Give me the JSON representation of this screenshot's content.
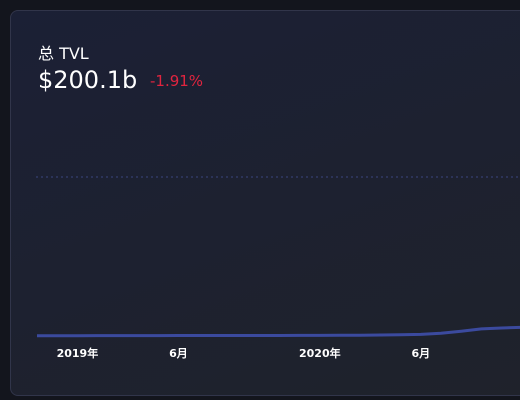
{
  "chart_data": {
    "type": "line",
    "title": "总 TVL",
    "value_text": "$200.1b",
    "change_text": "-1.91%",
    "categories": [
      null,
      null,
      "2019年",
      null,
      null,
      null,
      null,
      "6月",
      null,
      null,
      null,
      null,
      null,
      null,
      "2020年",
      null,
      null,
      null,
      null,
      "6月",
      null,
      null,
      null,
      null,
      null
    ],
    "series": [
      {
        "name": "TVL",
        "color": "#3b4a9e",
        "values": [
          0.3,
          0.3,
          0.3,
          0.4,
          0.4,
          0.5,
          0.5,
          0.6,
          0.6,
          0.6,
          0.7,
          0.7,
          0.7,
          0.8,
          0.8,
          0.9,
          1,
          1.2,
          1.5,
          2,
          3.5,
          6,
          9,
          10,
          11
        ]
      }
    ],
    "ylim": [
      0,
      200
    ],
    "change_color": "#e0243f"
  }
}
